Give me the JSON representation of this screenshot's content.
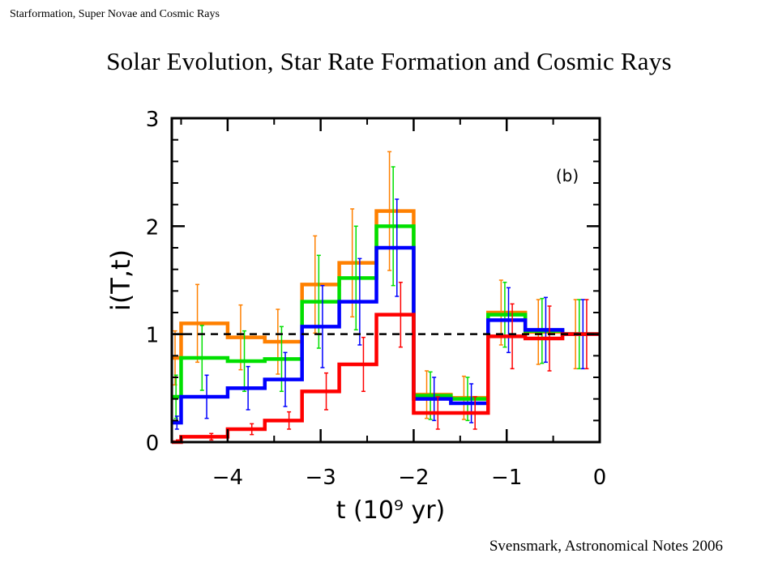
{
  "slide": {
    "header": "Starformation, Super Novae and Cosmic Rays",
    "title": "Solar Evolution, Star Rate Formation and Cosmic Rays",
    "citation": "Svensmark, Astronomical Notes 2006"
  },
  "chart_data": {
    "type": "line",
    "style": "step histogram with error bars",
    "panel_label": "(b)",
    "xlabel": "t   (10⁹ yr)",
    "ylabel": "i(T,t)",
    "xlim": [
      -4.6,
      0
    ],
    "ylim": [
      0,
      3
    ],
    "xticks": [
      -4,
      -3,
      -2,
      -1,
      0
    ],
    "xtick_labels": [
      "−4",
      "−3",
      "−2",
      "−1",
      "0"
    ],
    "yticks": [
      0,
      1,
      2,
      3
    ],
    "ytick_labels": [
      "0",
      "1",
      "2",
      "3"
    ],
    "reference_line": {
      "y": 1,
      "style": "dashed"
    },
    "bin_edges": [
      -4.6,
      -4.5,
      -4.0,
      -3.6,
      -3.2,
      -2.8,
      -2.4,
      -2.0,
      -1.6,
      -1.2,
      -0.8,
      -0.4,
      0.0
    ],
    "series": [
      {
        "color": "#ff8000",
        "values": [
          0.78,
          1.1,
          0.97,
          0.93,
          1.46,
          1.66,
          2.14,
          0.44,
          0.41,
          1.2,
          1.02,
          1.0
        ],
        "errors": [
          0.25,
          0.36,
          0.3,
          0.3,
          0.45,
          0.5,
          0.55,
          0.22,
          0.2,
          0.3,
          0.3,
          0.32
        ]
      },
      {
        "color": "#00e000",
        "values": [
          0.42,
          0.78,
          0.75,
          0.77,
          1.3,
          1.52,
          2.0,
          0.43,
          0.4,
          1.18,
          1.03,
          1.0
        ],
        "errors": [
          0.2,
          0.3,
          0.28,
          0.3,
          0.43,
          0.48,
          0.55,
          0.22,
          0.2,
          0.3,
          0.3,
          0.32
        ]
      },
      {
        "color": "#0000ff",
        "values": [
          0.18,
          0.42,
          0.5,
          0.58,
          1.07,
          1.3,
          1.8,
          0.4,
          0.36,
          1.13,
          1.04,
          1.0
        ],
        "errors": [
          0.06,
          0.2,
          0.2,
          0.25,
          0.38,
          0.4,
          0.45,
          0.2,
          0.18,
          0.3,
          0.3,
          0.32
        ]
      },
      {
        "color": "#ff0000",
        "values": [
          0.0,
          0.05,
          0.12,
          0.2,
          0.47,
          0.72,
          1.18,
          0.27,
          0.27,
          0.98,
          0.96,
          1.0
        ],
        "errors": [
          0.02,
          0.03,
          0.05,
          0.08,
          0.17,
          0.25,
          0.3,
          0.15,
          0.15,
          0.3,
          0.3,
          0.32
        ]
      }
    ]
  }
}
